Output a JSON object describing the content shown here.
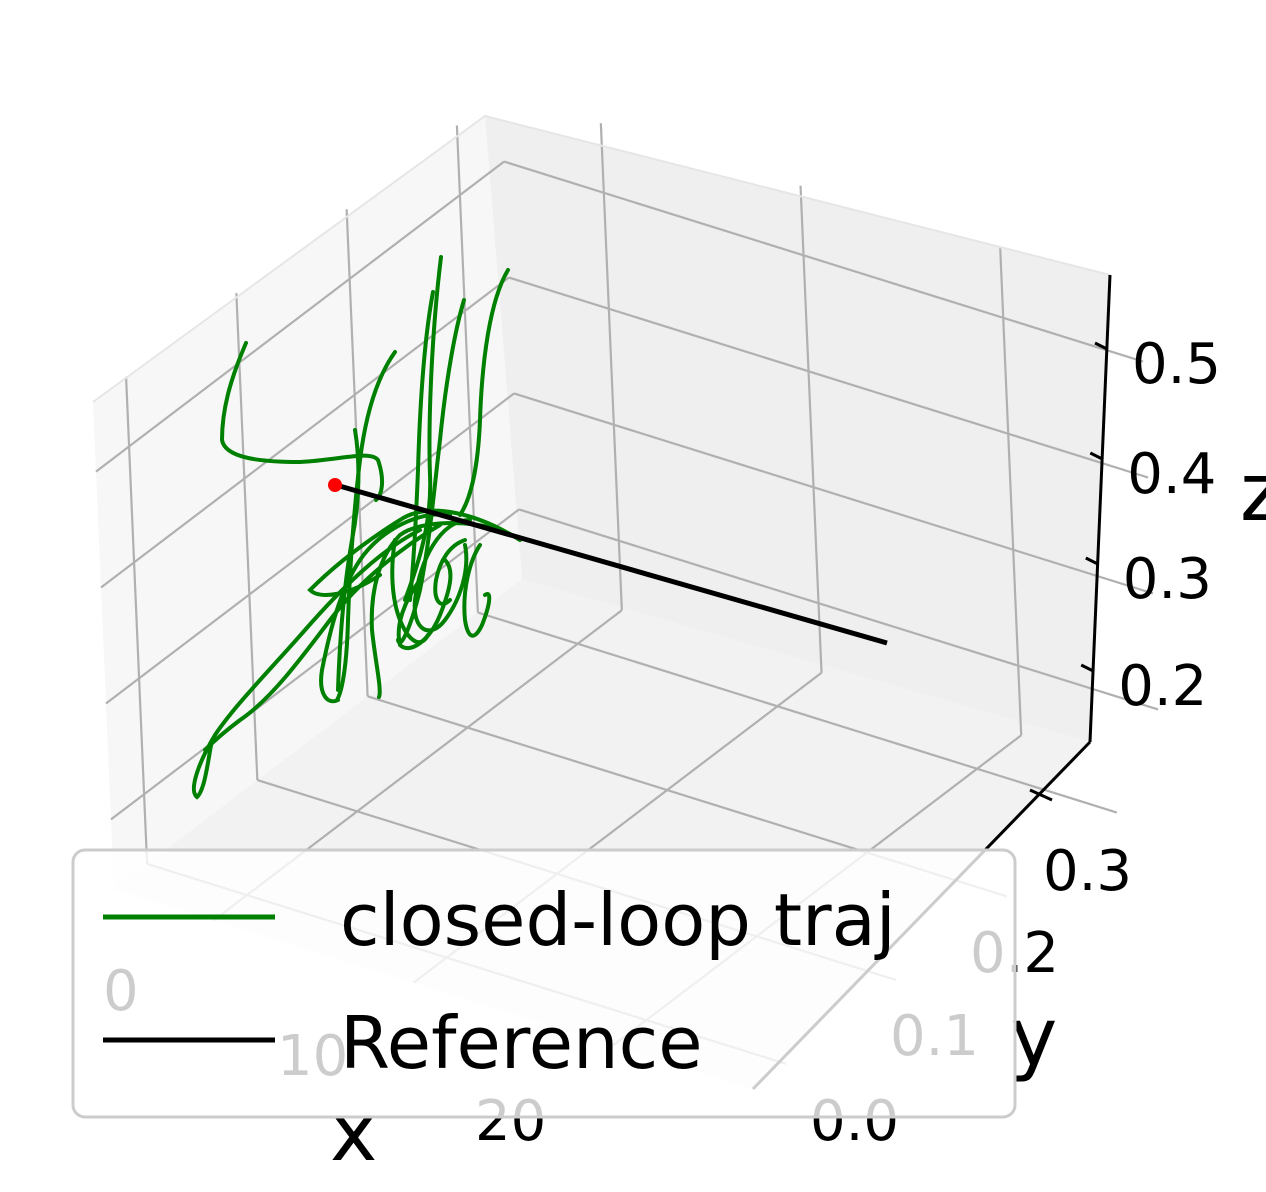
{
  "chart_data": {
    "type": "line3d",
    "xlabel": "x",
    "ylabel": "y",
    "zlabel": "z",
    "x_ticks": [
      "0",
      "10",
      "20"
    ],
    "y_ticks": [
      "0.0",
      "0.1",
      "0.2",
      "0.3"
    ],
    "z_ticks": [
      "0.2",
      "0.3",
      "0.4",
      "0.5"
    ],
    "xlim": [
      -5,
      27
    ],
    "ylim": [
      -0.03,
      0.34
    ],
    "zlim": [
      0.14,
      0.56
    ],
    "legend": {
      "location": "lower-left",
      "entries": [
        "closed-loop traj",
        "Reference"
      ]
    },
    "series": [
      {
        "name": "closed-loop traj",
        "color": "#008000",
        "description": "many noisy loops clustered around the start point"
      },
      {
        "name": "Reference",
        "color": "#000000",
        "start": {
          "x": 0,
          "y": 0.3,
          "z": 0.4
        },
        "end": {
          "x": 25,
          "y": 0.3,
          "z": 0.3
        }
      }
    ],
    "start_marker": {
      "color": "#ff0000",
      "x": 0,
      "y": 0.3,
      "z": 0.4
    }
  }
}
